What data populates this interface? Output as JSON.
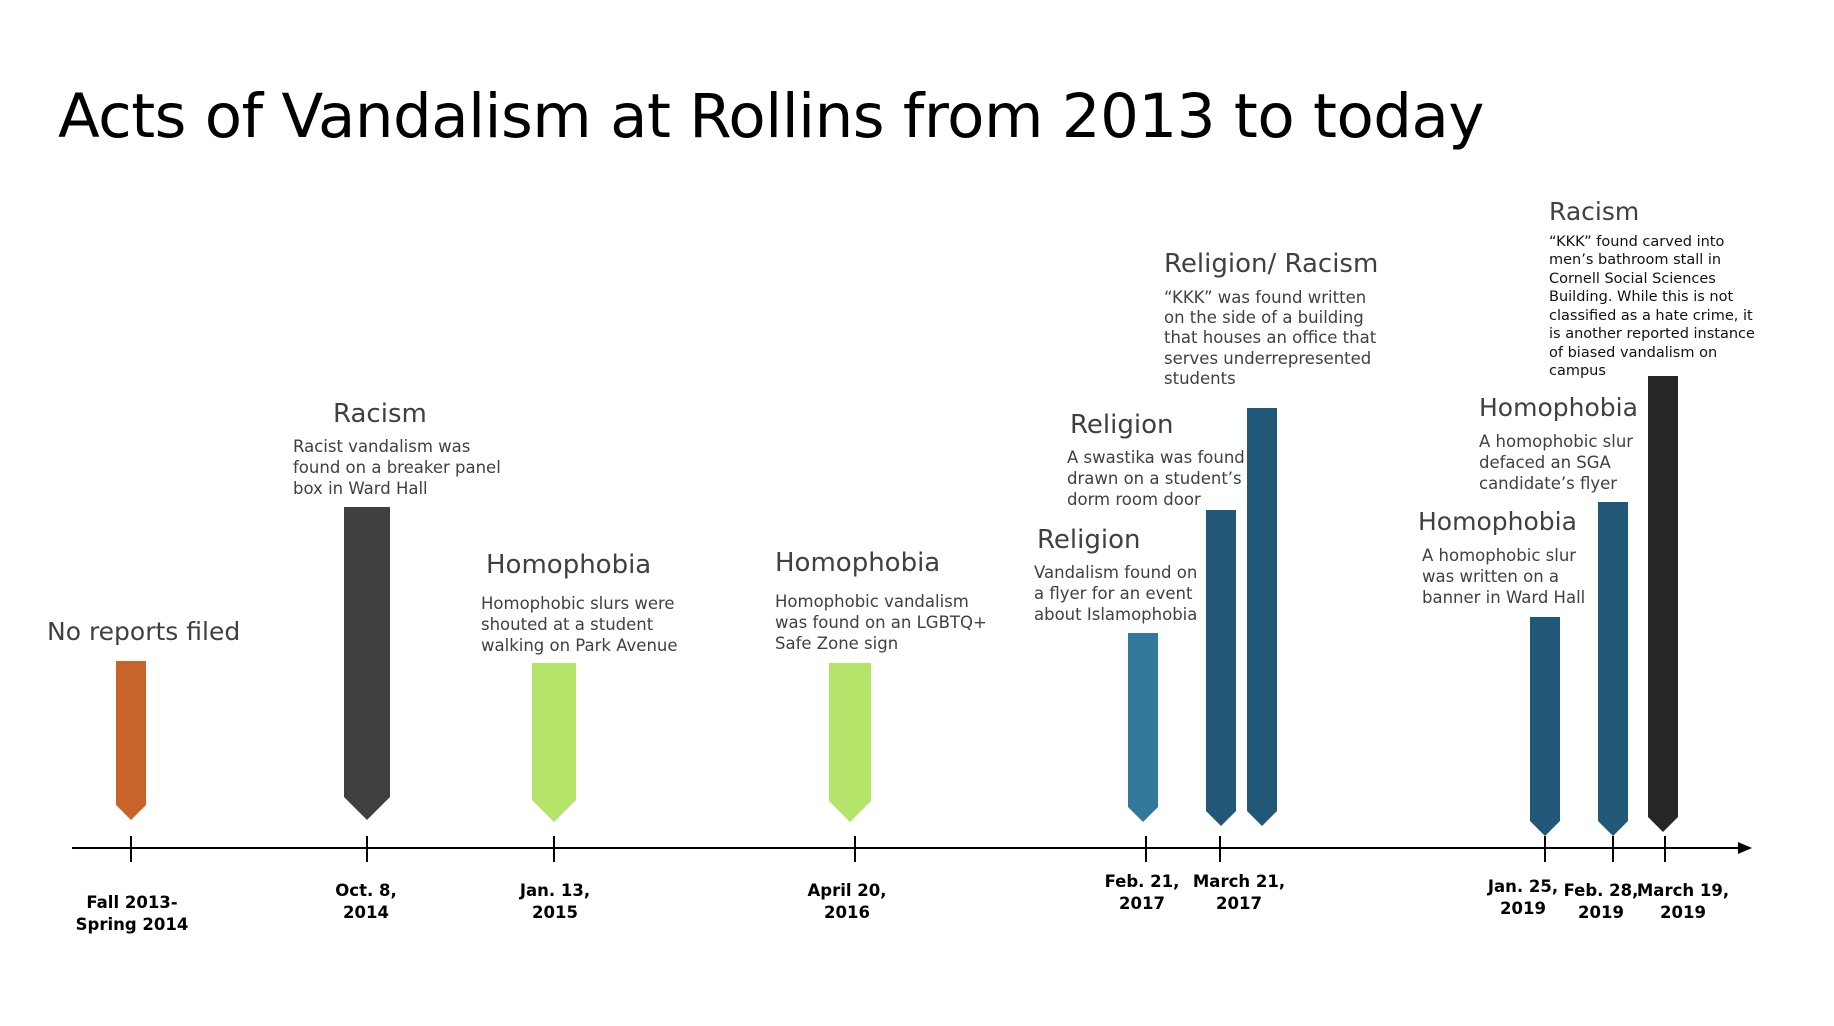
{
  "title": "Acts of Vandalism at Rollins from 2013 to today",
  "colors": {
    "orange": "#c8642a",
    "dark_gray": "#404040",
    "light_green": "#b5e46a",
    "steel_blue": "#31799c",
    "navy_blue": "#215878",
    "near_black": "#262626"
  },
  "events": [
    {
      "category": "No reports filed",
      "description": "",
      "date": "Fall 2013-\nSpring 2014",
      "color": "#c8642a",
      "bar_top": 661
    },
    {
      "category": "Racism",
      "description": "Racist vandalism was\nfound on a breaker panel\nbox in Ward Hall",
      "date": "Oct. 8,\n2014",
      "color": "#404040",
      "bar_top": 507
    },
    {
      "category": "Homophobia",
      "description": "Homophobic slurs were\nshouted at a student\nwalking on Park Avenue",
      "date": "Jan. 13,\n2015",
      "color": "#b5e46a",
      "bar_top": 663
    },
    {
      "category": "Homophobia",
      "description": "Homophobic vandalism\nwas found on an LGBTQ+\nSafe Zone sign",
      "date": "April 20,\n2016",
      "color": "#b5e46a",
      "bar_top": 663
    },
    {
      "category": "Religion",
      "description": "Vandalism found on\na flyer for an event\nabout Islamophobia",
      "date": "Feb. 21,\n2017",
      "color": "#31799c",
      "bar_top": 633
    },
    {
      "category": "Religion",
      "description": "A swastika was found\ndrawn on a student’s\ndorm room door",
      "date": "March 21,\n2017",
      "color": "#215878",
      "bar_top": 510
    },
    {
      "category": "Religion/ Racism",
      "description": "“KKK” was found written\non the side of a building\nthat houses an office that\nserves underrepresented\nstudents",
      "date": "",
      "color": "#215878",
      "bar_top": 408
    },
    {
      "category": "Homophobia",
      "description": "A homophobic slur\nwas written on a\nbanner in Ward Hall",
      "date": "Jan. 25,\n2019",
      "color": "#215878",
      "bar_top": 617
    },
    {
      "category": "Homophobia",
      "description": "A homophobic slur\ndefaced an SGA\ncandidate’s flyer",
      "date": "Feb. 28,\n2019",
      "color": "#215878",
      "bar_top": 502
    },
    {
      "category": "Racism",
      "description": "“KKK” found carved into\nmen’s bathroom stall in\nCornell Social Sciences\nBuilding. While this is not\nclassified as a hate crime, it\nis another reported instance\nof biased vandalism on\ncampus",
      "date": "March 19,\n2019",
      "color": "#262626",
      "bar_top": 376
    }
  ]
}
